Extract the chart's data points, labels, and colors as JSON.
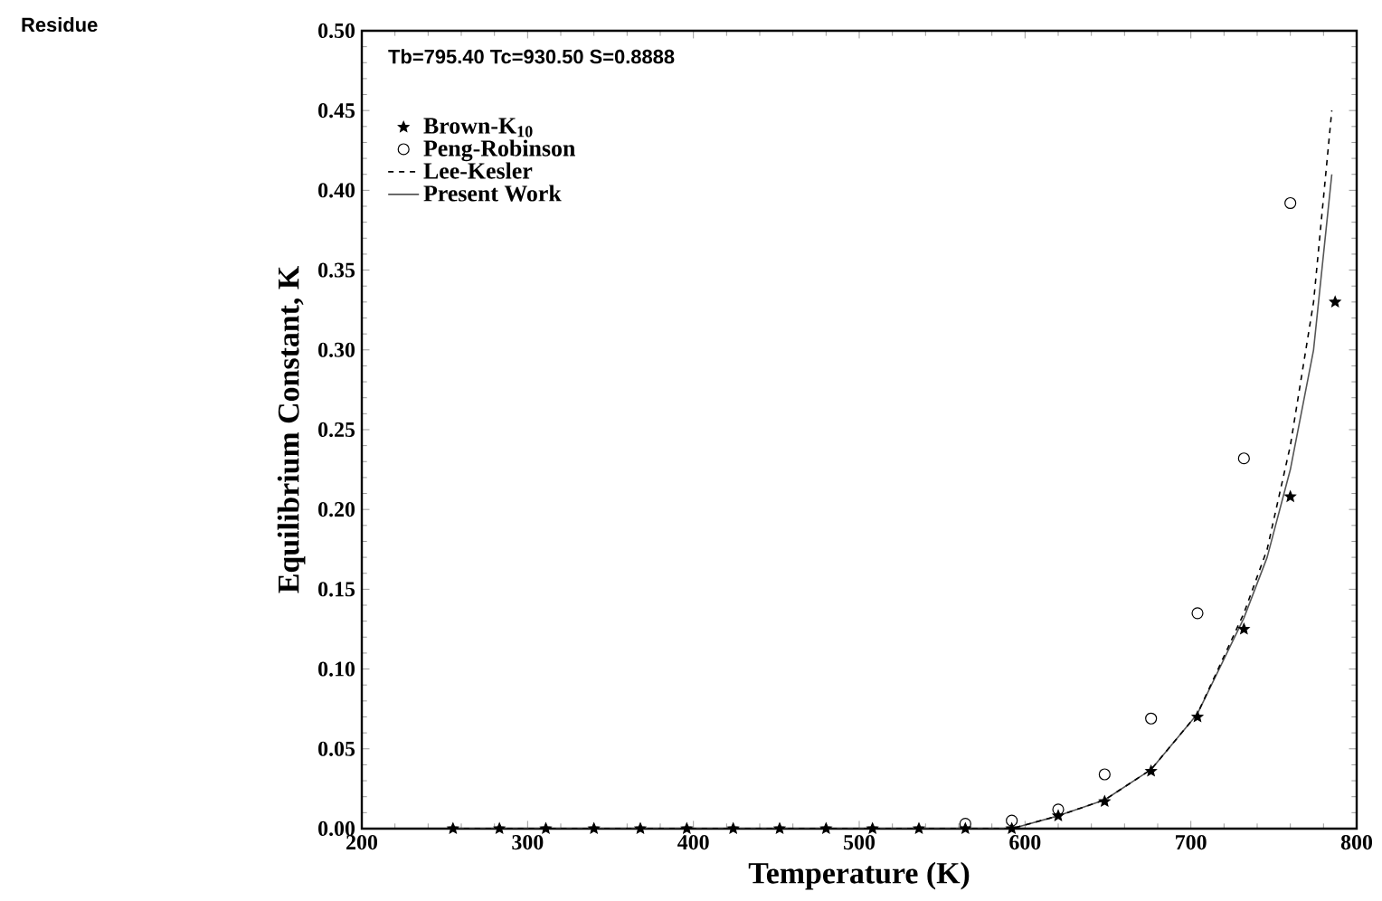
{
  "chart_data": {
    "type": "line",
    "xlabel": "Temperature (K)",
    "ylabel": "Equilibrium Constant, K",
    "annotations": [
      "Tb=795.40 Tc=930.50 S=0.8888",
      "Residue"
    ],
    "xlim": [
      200,
      800
    ],
    "xticks": [
      200,
      300,
      400,
      500,
      600,
      700,
      800
    ],
    "ylim": [
      0,
      0.5
    ],
    "yticks": [
      {
        "value": 0,
        "label": "0.00"
      },
      {
        "value": 0.05,
        "label": "0.05"
      },
      {
        "value": 0.1,
        "label": "0.10"
      },
      {
        "value": 0.15,
        "label": "0.15"
      },
      {
        "value": 0.2,
        "label": "0.20"
      },
      {
        "value": 0.25,
        "label": "0.25"
      },
      {
        "value": 0.3,
        "label": "0.30"
      },
      {
        "value": 0.35,
        "label": "0.35"
      },
      {
        "value": 0.4,
        "label": "0.40"
      },
      {
        "value": 0.45,
        "label": "0.45"
      },
      {
        "value": 0.5,
        "label": "0.50"
      }
    ],
    "grid": false,
    "legend": "top left",
    "series": [
      {
        "name": "Brown-K$_{10}$",
        "type": "scatter",
        "marker": "star",
        "color": "#000000",
        "x": [
          255,
          283,
          311,
          340,
          368,
          396,
          424,
          452,
          480,
          508,
          536,
          564,
          592,
          620,
          648,
          676,
          704,
          732,
          760,
          787
        ],
        "values": [
          0,
          0,
          0,
          0,
          0,
          0,
          0,
          0,
          0,
          0,
          0,
          0,
          0,
          0.008,
          0.017,
          0.036,
          0.07,
          0.125,
          0.208,
          0.33
        ]
      },
      {
        "name": "Peng-Robinson",
        "type": "scatter",
        "marker": "circle",
        "color": "#000000",
        "x": [
          564,
          592,
          620,
          648,
          676,
          704,
          732,
          760
        ],
        "values": [
          0.003,
          0.005,
          0.012,
          0.034,
          0.069,
          0.135,
          0.232,
          0.392
        ]
      },
      {
        "name": "Lee-Kesler",
        "type": "line",
        "marker": "none",
        "line_style": "dashed",
        "color": "#000000",
        "x": [
          255,
          592,
          620,
          648,
          676,
          704,
          732,
          746,
          760,
          774,
          785
        ],
        "values": [
          0,
          0,
          0.008,
          0.018,
          0.037,
          0.072,
          0.135,
          0.175,
          0.24,
          0.33,
          0.45
        ]
      },
      {
        "name": "Present Work",
        "type": "line",
        "marker": "none",
        "line_style": "solid",
        "color": "#555555",
        "x": [
          255,
          592,
          620,
          648,
          676,
          704,
          732,
          746,
          760,
          774,
          785
        ],
        "values": [
          0,
          0,
          0.008,
          0.018,
          0.037,
          0.072,
          0.132,
          0.17,
          0.225,
          0.3,
          0.41
        ]
      }
    ]
  }
}
